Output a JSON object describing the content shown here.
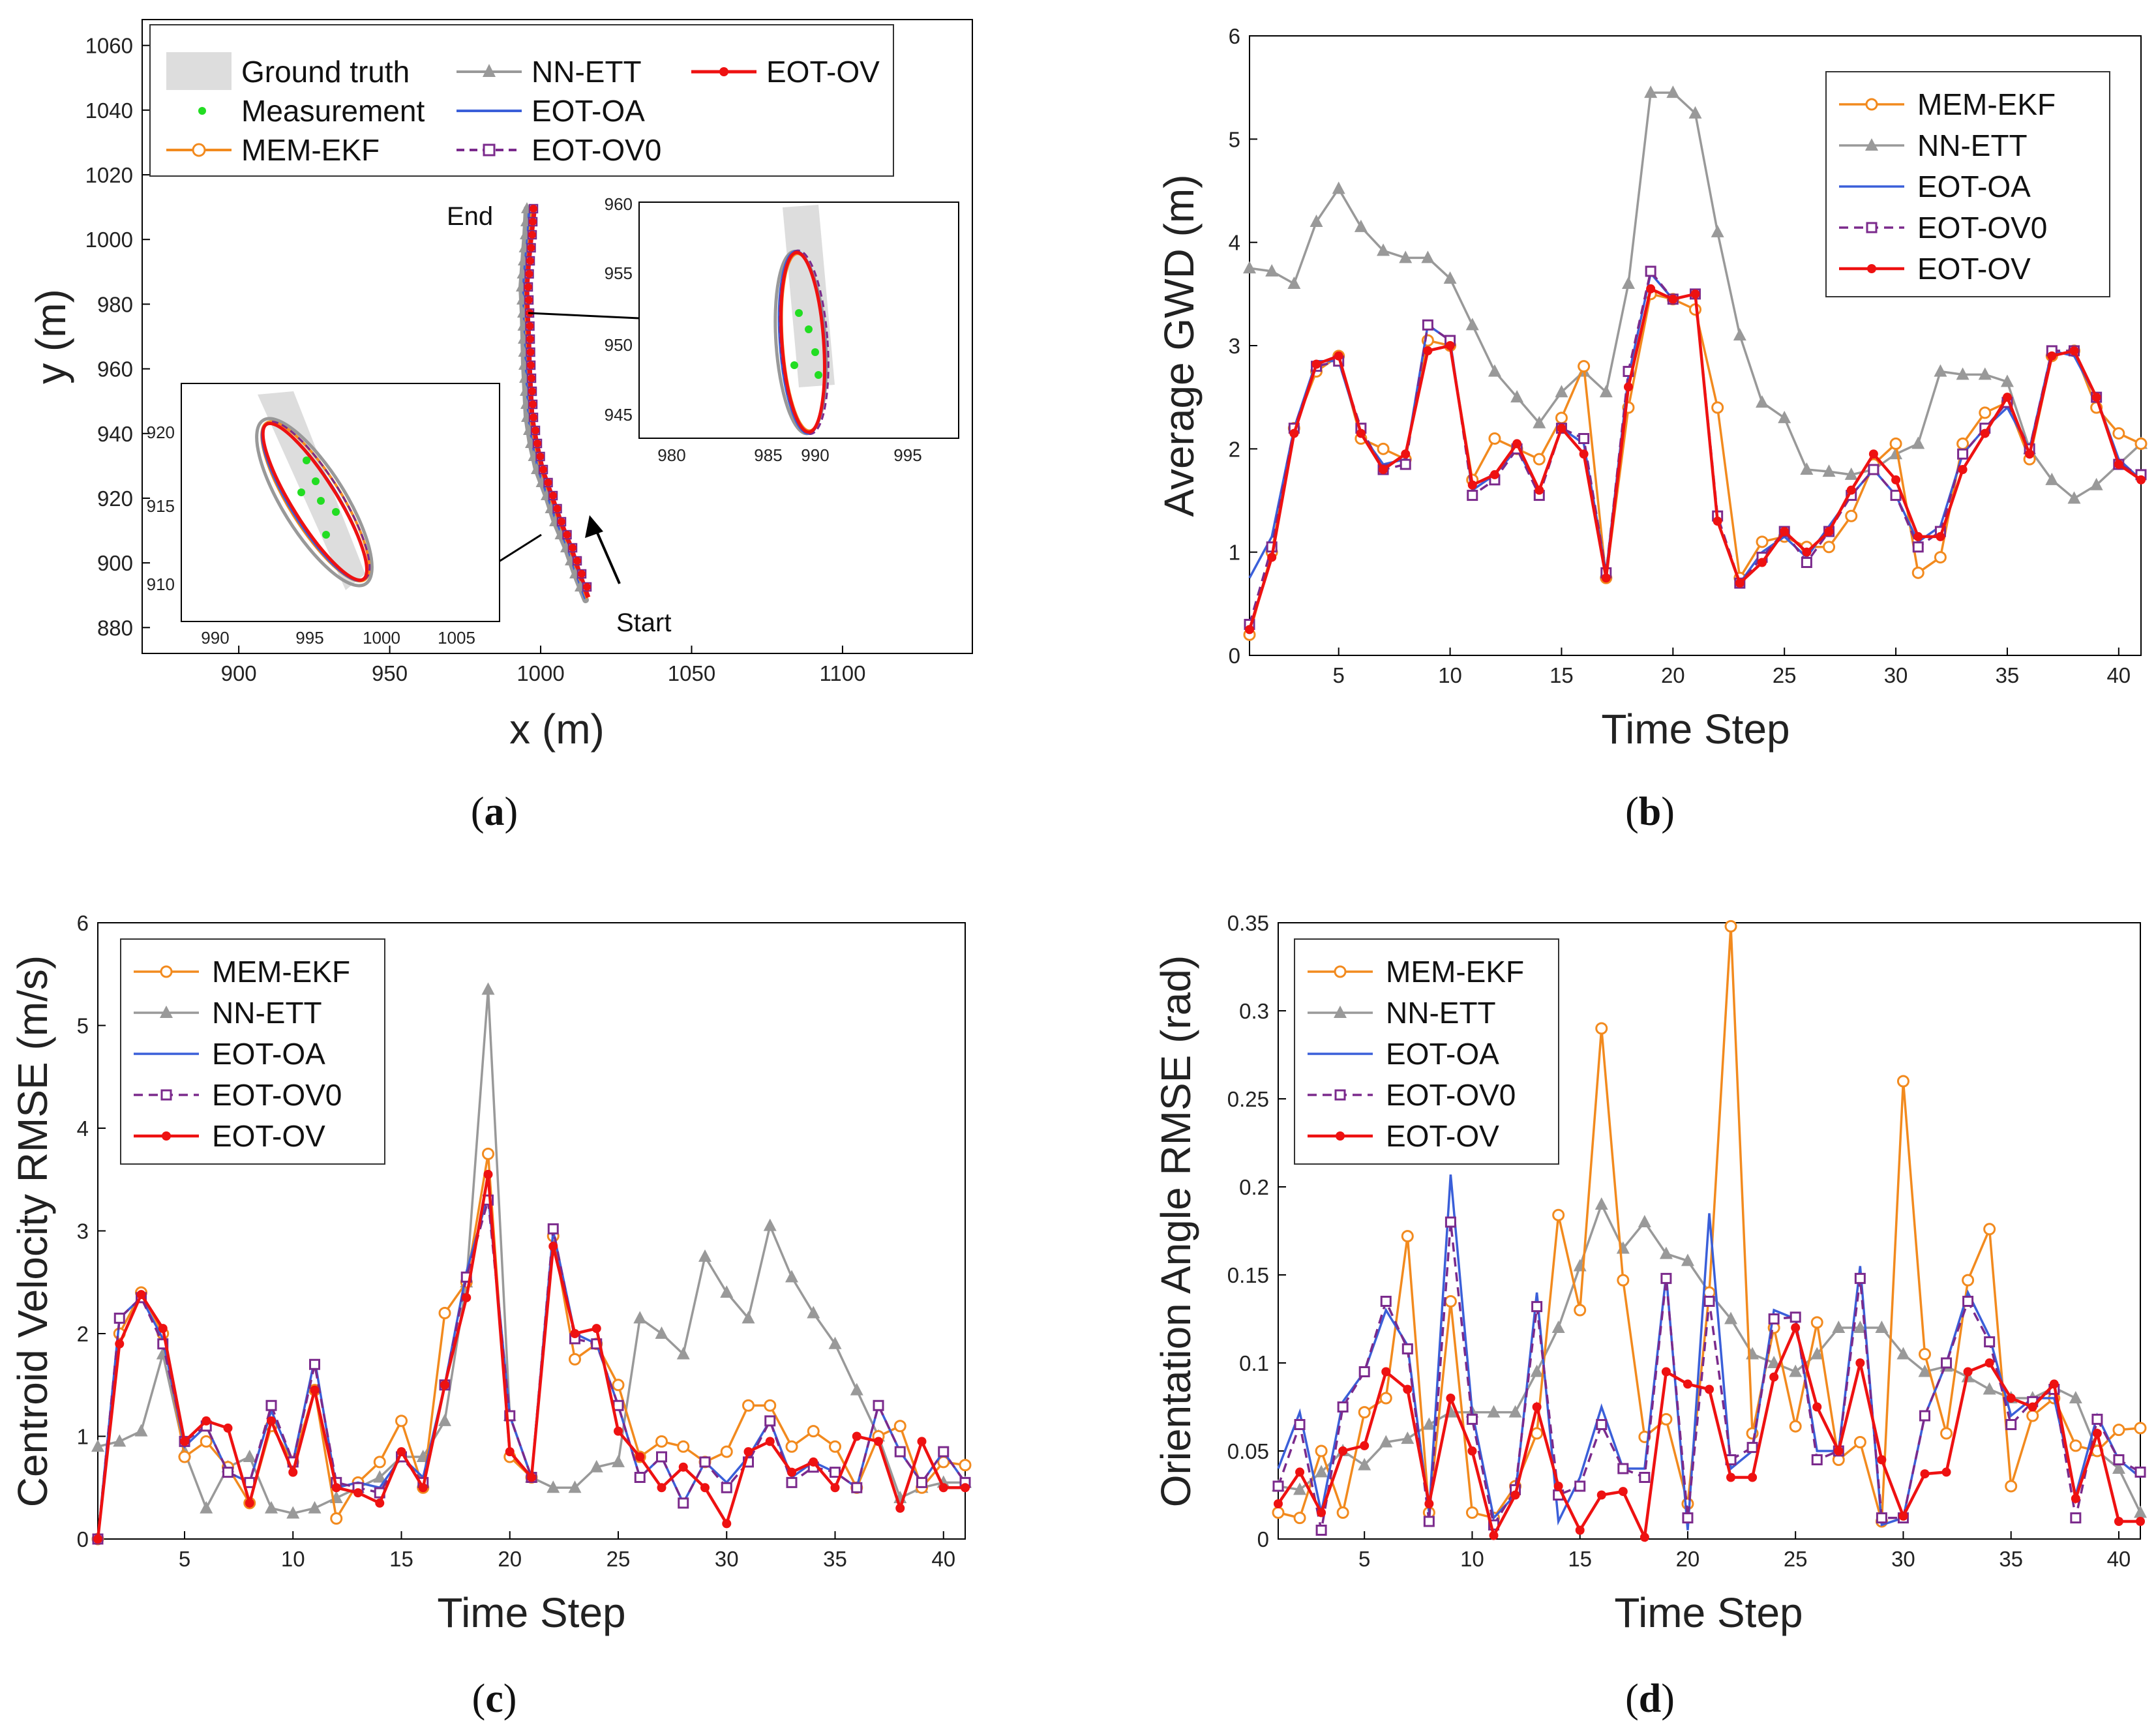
{
  "figure": {
    "captions": [
      "a",
      "b",
      "c",
      "d"
    ]
  },
  "colors": {
    "MEM-EKF": "#F28A1E",
    "NN-ETT": "#999999",
    "EOT-OA": "#3A5FD9",
    "EOT-OV0": "#7B2A8C",
    "EOT-OV": "#EE1111",
    "Ground truth": "#DDDDDD",
    "Measurement": "#22DD22"
  },
  "panel_a": {
    "xlabel": "x (m)",
    "ylabel": "y (m)",
    "xticks": [
      "900",
      "950",
      "1000",
      "1050",
      "1100"
    ],
    "yticks": [
      "880",
      "900",
      "920",
      "940",
      "960",
      "980",
      "1000",
      "1020",
      "1040",
      "1060"
    ],
    "legend": [
      "Ground truth",
      "Measurement",
      "MEM-EKF",
      "NN-ETT",
      "EOT-OA",
      "EOT-OV0",
      "EOT-OV"
    ],
    "annotations": {
      "start": "Start",
      "end": "End"
    },
    "inset_lower": {
      "xticks": [
        "990",
        "995",
        "1000",
        "1005"
      ],
      "yticks": [
        "910",
        "915",
        "920"
      ]
    },
    "inset_upper": {
      "xticks": [
        "980",
        "985",
        "990",
        "995"
      ],
      "yticks": [
        "945",
        "950",
        "955",
        "960"
      ]
    }
  },
  "chart_data": [
    {
      "panel": "b",
      "type": "line",
      "title": "",
      "xlabel": "Time Step",
      "ylabel": "Average GWD (m)",
      "xlim": [
        1,
        41
      ],
      "ylim": [
        0,
        6
      ],
      "xticks": [
        "5",
        "10",
        "15",
        "20",
        "25",
        "30",
        "35",
        "40"
      ],
      "yticks": [
        "0",
        "1",
        "2",
        "3",
        "4",
        "5",
        "6"
      ],
      "legend_position": "top-right",
      "x": [
        1,
        2,
        3,
        4,
        5,
        6,
        7,
        8,
        9,
        10,
        11,
        12,
        13,
        14,
        15,
        16,
        17,
        18,
        19,
        20,
        21,
        22,
        23,
        24,
        25,
        26,
        27,
        28,
        29,
        30,
        31,
        32,
        33,
        34,
        35,
        36,
        37,
        38,
        39,
        40,
        41
      ],
      "series": [
        {
          "name": "MEM-EKF",
          "values": [
            0.2,
            1.0,
            2.2,
            2.75,
            2.9,
            2.1,
            2.0,
            1.9,
            3.05,
            3.0,
            1.7,
            2.1,
            2.0,
            1.9,
            2.3,
            2.8,
            0.75,
            2.4,
            3.5,
            3.45,
            3.35,
            2.4,
            0.75,
            1.1,
            1.15,
            1.05,
            1.05,
            1.35,
            1.85,
            2.05,
            0.8,
            0.95,
            2.05,
            2.35,
            2.45,
            1.9,
            2.9,
            2.95,
            2.4,
            2.15,
            2.05
          ]
        },
        {
          "name": "NN-ETT",
          "values": [
            3.75,
            3.72,
            3.6,
            4.2,
            4.52,
            4.15,
            3.92,
            3.85,
            3.85,
            3.65,
            3.2,
            2.75,
            2.5,
            2.25,
            2.55,
            2.75,
            2.55,
            3.6,
            5.45,
            5.45,
            5.25,
            4.1,
            3.1,
            2.45,
            2.3,
            1.8,
            1.78,
            1.75,
            1.8,
            1.95,
            2.05,
            2.75,
            2.72,
            2.72,
            2.65,
            2.0,
            1.7,
            1.52,
            1.65,
            1.85,
            2.05
          ]
        },
        {
          "name": "EOT-OA",
          "values": [
            0.75,
            1.15,
            2.2,
            2.85,
            2.85,
            2.15,
            1.85,
            1.9,
            3.2,
            3.05,
            1.6,
            1.75,
            2.0,
            1.6,
            2.2,
            2.05,
            0.8,
            2.7,
            3.7,
            3.45,
            3.5,
            1.3,
            0.7,
            1.0,
            1.15,
            0.95,
            1.25,
            1.55,
            1.8,
            1.55,
            1.1,
            1.25,
            1.95,
            2.2,
            2.4,
            2.0,
            2.95,
            2.9,
            2.5,
            1.9,
            1.7
          ]
        },
        {
          "name": "EOT-OV0",
          "values": [
            0.3,
            1.05,
            2.2,
            2.8,
            2.85,
            2.2,
            1.8,
            1.85,
            3.2,
            3.05,
            1.55,
            1.7,
            2.0,
            1.55,
            2.2,
            2.1,
            0.8,
            2.75,
            3.72,
            3.45,
            3.5,
            1.35,
            0.7,
            0.95,
            1.2,
            0.9,
            1.2,
            1.55,
            1.8,
            1.55,
            1.05,
            1.2,
            1.95,
            2.2,
            2.45,
            2.0,
            2.95,
            2.95,
            2.5,
            1.85,
            1.75
          ]
        },
        {
          "name": "EOT-OV",
          "values": [
            0.25,
            0.95,
            2.15,
            2.82,
            2.9,
            2.15,
            1.8,
            1.95,
            2.95,
            3.0,
            1.65,
            1.75,
            2.05,
            1.6,
            2.2,
            1.95,
            0.75,
            2.6,
            3.55,
            3.45,
            3.5,
            1.3,
            0.7,
            0.9,
            1.2,
            1.0,
            1.2,
            1.6,
            1.95,
            1.7,
            1.15,
            1.15,
            1.8,
            2.15,
            2.5,
            1.95,
            2.9,
            2.95,
            2.5,
            1.85,
            1.7
          ]
        }
      ]
    },
    {
      "panel": "c",
      "type": "line",
      "title": "",
      "xlabel": "Time Step",
      "ylabel": "Centroid Velocity RMSE (m/s)",
      "xlim": [
        1,
        41
      ],
      "ylim": [
        0,
        6
      ],
      "xticks": [
        "5",
        "10",
        "15",
        "20",
        "25",
        "30",
        "35",
        "40"
      ],
      "yticks": [
        "0",
        "1",
        "2",
        "3",
        "4",
        "5",
        "6"
      ],
      "legend_position": "top-left",
      "x": [
        1,
        2,
        3,
        4,
        5,
        6,
        7,
        8,
        9,
        10,
        11,
        12,
        13,
        14,
        15,
        16,
        17,
        18,
        19,
        20,
        21,
        22,
        23,
        24,
        25,
        26,
        27,
        28,
        29,
        30,
        31,
        32,
        33,
        34,
        35,
        36,
        37,
        38,
        39,
        40,
        41
      ],
      "series": [
        {
          "name": "MEM-EKF",
          "values": [
            0.0,
            2.0,
            2.4,
            2.0,
            0.8,
            0.95,
            0.7,
            0.35,
            1.1,
            0.75,
            1.45,
            0.2,
            0.55,
            0.75,
            1.15,
            0.5,
            2.2,
            2.5,
            3.75,
            0.8,
            0.6,
            2.95,
            1.75,
            1.9,
            1.5,
            0.8,
            0.95,
            0.9,
            0.75,
            0.85,
            1.3,
            1.3,
            0.9,
            1.05,
            0.9,
            0.5,
            1.0,
            1.1,
            0.5,
            0.75,
            0.72
          ]
        },
        {
          "name": "NN-ETT",
          "values": [
            0.9,
            0.95,
            1.05,
            1.8,
            0.85,
            0.3,
            0.7,
            0.8,
            0.3,
            0.25,
            0.3,
            0.4,
            0.5,
            0.6,
            0.8,
            0.8,
            1.15,
            2.5,
            5.35,
            1.2,
            0.6,
            0.5,
            0.5,
            0.7,
            0.75,
            2.15,
            2.0,
            1.8,
            2.75,
            2.4,
            2.15,
            3.05,
            2.55,
            2.2,
            1.9,
            1.45,
            1.0,
            0.4,
            0.5,
            0.55,
            0.55
          ]
        },
        {
          "name": "EOT-OA",
          "values": [
            0.0,
            2.15,
            2.35,
            1.95,
            0.9,
            1.1,
            0.65,
            0.55,
            1.25,
            0.75,
            1.75,
            0.5,
            0.55,
            0.5,
            0.8,
            0.6,
            1.5,
            2.6,
            3.35,
            1.2,
            0.6,
            3.0,
            2.0,
            1.9,
            1.3,
            0.6,
            0.8,
            0.35,
            0.75,
            0.55,
            0.8,
            1.15,
            0.6,
            0.75,
            0.65,
            0.5,
            1.3,
            0.85,
            0.55,
            0.85,
            0.55
          ]
        },
        {
          "name": "EOT-OV0",
          "values": [
            0.0,
            2.15,
            2.35,
            1.9,
            0.95,
            1.1,
            0.65,
            0.55,
            1.3,
            0.75,
            1.7,
            0.55,
            0.5,
            0.45,
            0.8,
            0.55,
            1.5,
            2.55,
            3.3,
            1.2,
            0.6,
            3.02,
            1.95,
            1.9,
            1.3,
            0.6,
            0.8,
            0.35,
            0.75,
            0.5,
            0.75,
            1.15,
            0.55,
            0.7,
            0.65,
            0.5,
            1.3,
            0.85,
            0.55,
            0.85,
            0.55
          ]
        },
        {
          "name": "EOT-OV",
          "values": [
            0.0,
            1.9,
            2.38,
            2.05,
            0.95,
            1.15,
            1.08,
            0.35,
            1.15,
            0.65,
            1.45,
            0.5,
            0.45,
            0.35,
            0.85,
            0.5,
            1.5,
            2.35,
            3.55,
            0.85,
            0.6,
            2.85,
            2.0,
            2.05,
            1.05,
            0.8,
            0.5,
            0.7,
            0.5,
            0.15,
            0.85,
            0.95,
            0.65,
            0.75,
            0.5,
            1.0,
            0.95,
            0.3,
            0.95,
            0.5,
            0.5
          ]
        }
      ]
    },
    {
      "panel": "d",
      "type": "line",
      "title": "",
      "xlabel": "Time Step",
      "ylabel": "Orientation Angle RMSE (rad)",
      "xlim": [
        1,
        41
      ],
      "ylim": [
        0,
        0.35
      ],
      "xticks": [
        "5",
        "10",
        "15",
        "20",
        "25",
        "30",
        "35",
        "40"
      ],
      "yticks": [
        "0",
        "0.05",
        "0.1",
        "0.15",
        "0.2",
        "0.25",
        "0.3",
        "0.35"
      ],
      "legend_position": "top-left",
      "x": [
        1,
        2,
        3,
        4,
        5,
        6,
        7,
        8,
        9,
        10,
        11,
        12,
        13,
        14,
        15,
        16,
        17,
        18,
        19,
        20,
        21,
        22,
        23,
        24,
        25,
        26,
        27,
        28,
        29,
        30,
        31,
        32,
        33,
        34,
        35,
        36,
        37,
        38,
        39,
        40,
        41
      ],
      "series": [
        {
          "name": "MEM-EKF",
          "values": [
            0.015,
            0.012,
            0.05,
            0.015,
            0.072,
            0.08,
            0.172,
            0.015,
            0.135,
            0.015,
            0.012,
            0.03,
            0.06,
            0.184,
            0.13,
            0.29,
            0.147,
            0.058,
            0.068,
            0.02,
            0.14,
            0.348,
            0.06,
            0.12,
            0.064,
            0.123,
            0.045,
            0.055,
            0.01,
            0.26,
            0.105,
            0.06,
            0.147,
            0.176,
            0.03,
            0.07,
            0.08,
            0.053,
            0.05,
            0.062,
            0.063
          ]
        },
        {
          "name": "NN-ETT",
          "values": [
            0.03,
            0.028,
            0.038,
            0.05,
            0.042,
            0.055,
            0.057,
            0.065,
            0.072,
            0.072,
            0.072,
            0.072,
            0.095,
            0.12,
            0.155,
            0.19,
            0.165,
            0.18,
            0.162,
            0.158,
            0.14,
            0.125,
            0.105,
            0.1,
            0.095,
            0.105,
            0.12,
            0.12,
            0.12,
            0.105,
            0.095,
            0.098,
            0.092,
            0.085,
            0.08,
            0.08,
            0.086,
            0.08,
            0.05,
            0.04,
            0.015
          ]
        },
        {
          "name": "EOT-OA",
          "values": [
            0.04,
            0.072,
            0.015,
            0.078,
            0.095,
            0.13,
            0.11,
            0.015,
            0.207,
            0.072,
            0.012,
            0.025,
            0.14,
            0.01,
            0.035,
            0.075,
            0.04,
            0.04,
            0.15,
            0.005,
            0.185,
            0.04,
            0.05,
            0.13,
            0.125,
            0.05,
            0.05,
            0.155,
            0.008,
            0.012,
            0.07,
            0.1,
            0.14,
            0.115,
            0.07,
            0.08,
            0.08,
            0.025,
            0.07,
            0.045,
            0.035
          ]
        },
        {
          "name": "EOT-OV0",
          "values": [
            0.03,
            0.065,
            0.005,
            0.075,
            0.095,
            0.135,
            0.108,
            0.01,
            0.18,
            0.068,
            0.008,
            0.028,
            0.132,
            0.025,
            0.03,
            0.065,
            0.04,
            0.035,
            0.148,
            0.012,
            0.135,
            0.045,
            0.052,
            0.125,
            0.126,
            0.045,
            0.05,
            0.148,
            0.012,
            0.012,
            0.07,
            0.1,
            0.135,
            0.112,
            0.065,
            0.078,
            0.085,
            0.012,
            0.068,
            0.045,
            0.038
          ]
        },
        {
          "name": "EOT-OV",
          "values": [
            0.02,
            0.038,
            0.015,
            0.05,
            0.053,
            0.095,
            0.085,
            0.02,
            0.08,
            0.05,
            0.002,
            0.025,
            0.075,
            0.03,
            0.005,
            0.025,
            0.027,
            0.001,
            0.095,
            0.088,
            0.085,
            0.035,
            0.035,
            0.092,
            0.12,
            0.075,
            0.05,
            0.1,
            0.045,
            0.013,
            0.037,
            0.038,
            0.095,
            0.1,
            0.08,
            0.075,
            0.088,
            0.023,
            0.06,
            0.01,
            0.01
          ]
        }
      ]
    }
  ]
}
